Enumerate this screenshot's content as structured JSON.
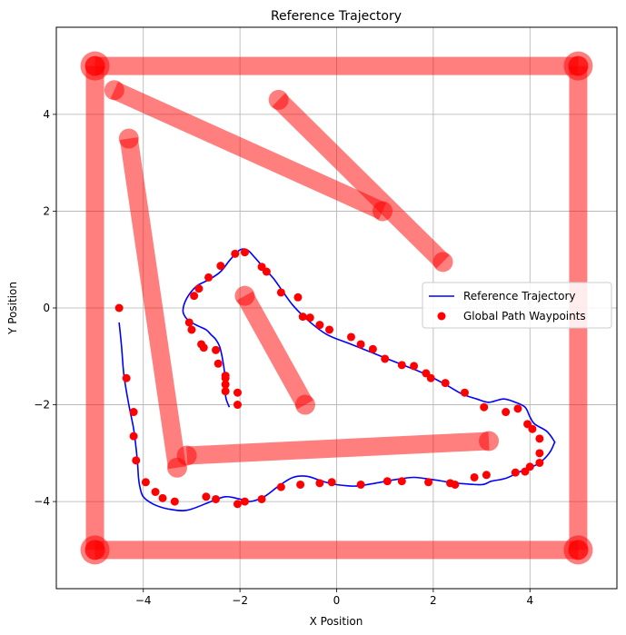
{
  "chart_data": {
    "type": "scatter",
    "title": "Reference Trajectory",
    "xlabel": "X Position",
    "ylabel": "Y Position",
    "xlim": [
      -5.8,
      5.8
    ],
    "ylim": [
      -5.8,
      5.8
    ],
    "xticks": [
      -4,
      -2,
      0,
      2,
      4
    ],
    "yticks": [
      -4,
      -2,
      0,
      2,
      4
    ],
    "tick_labels": {
      "x": [
        "−4",
        "−2",
        "0",
        "2",
        "4"
      ],
      "y": [
        "−4",
        "−2",
        "0",
        "2",
        "4"
      ]
    },
    "grid": true,
    "legend_position": "right",
    "legend": [
      {
        "label": "Reference Trajectory",
        "kind": "line",
        "color": "#0000ff"
      },
      {
        "label": "Global Path Waypoints",
        "kind": "marker",
        "color": "#ff0000"
      }
    ],
    "obstacles": {
      "color": "#ff0000",
      "opacity": 0.5,
      "segments": [
        {
          "from": [
            -5,
            5
          ],
          "to": [
            5,
            5
          ]
        },
        {
          "from": [
            5,
            5
          ],
          "to": [
            5,
            -5
          ]
        },
        {
          "from": [
            5,
            -5
          ],
          "to": [
            -5,
            -5
          ]
        },
        {
          "from": [
            -5,
            -5
          ],
          "to": [
            -5,
            5
          ]
        },
        {
          "from": [
            -4.6,
            4.5
          ],
          "to": [
            0.95,
            2.0
          ]
        },
        {
          "from": [
            -1.2,
            4.3
          ],
          "to": [
            2.2,
            0.95
          ]
        },
        {
          "from": [
            -4.3,
            3.5
          ],
          "to": [
            -3.3,
            -3.3
          ]
        },
        {
          "from": [
            -3.1,
            -3.05
          ],
          "to": [
            3.15,
            -2.75
          ]
        },
        {
          "from": [
            -1.9,
            0.25
          ],
          "to": [
            -0.65,
            -2.0
          ]
        }
      ]
    },
    "reference_trajectory": {
      "name": "Reference Trajectory",
      "color": "#0000ff",
      "x": [
        -4.5,
        -4.45,
        -4.4,
        -4.3,
        -4.2,
        -4.15,
        -4.12,
        -4.1,
        -4.07,
        -4.0,
        -3.8,
        -3.5,
        -3.1,
        -2.6,
        -2.3,
        -2.0,
        -1.8,
        -1.5,
        -1.2,
        -0.9,
        -0.6,
        -0.3,
        0.0,
        0.4,
        0.8,
        1.2,
        1.6,
        2.0,
        2.5,
        3.0,
        3.2,
        3.5,
        3.8,
        4.0,
        4.2,
        4.4,
        4.5,
        4.5,
        4.35,
        4.1,
        4.0,
        3.9,
        3.7,
        3.45,
        3.15,
        2.9,
        2.6,
        2.25,
        1.8,
        1.3,
        0.8,
        0.3,
        -0.2,
        -0.6,
        -0.9,
        -1.1,
        -1.3,
        -1.5,
        -1.7,
        -1.85,
        -2.0,
        -2.2,
        -2.4,
        -2.65,
        -2.9,
        -3.1,
        -3.18,
        -3.12,
        -3.0,
        -2.85,
        -2.7,
        -2.6,
        -2.5,
        -2.42,
        -2.37,
        -2.33,
        -2.3,
        -2.28,
        -2.3,
        -2.28,
        -2.25,
        -2.22
      ],
      "y": [
        -0.3,
        -0.8,
        -1.4,
        -2.0,
        -2.5,
        -2.9,
        -3.2,
        -3.5,
        -3.7,
        -3.9,
        -4.05,
        -4.15,
        -4.18,
        -4.0,
        -3.9,
        -3.95,
        -4.0,
        -3.9,
        -3.68,
        -3.5,
        -3.48,
        -3.58,
        -3.65,
        -3.68,
        -3.62,
        -3.55,
        -3.5,
        -3.55,
        -3.62,
        -3.65,
        -3.58,
        -3.52,
        -3.38,
        -3.3,
        -3.2,
        -3.0,
        -2.8,
        -2.75,
        -2.55,
        -2.4,
        -2.25,
        -2.05,
        -1.95,
        -1.88,
        -1.95,
        -1.88,
        -1.78,
        -1.58,
        -1.35,
        -1.15,
        -0.95,
        -0.75,
        -0.55,
        -0.25,
        0.05,
        0.32,
        0.6,
        0.82,
        1.05,
        1.2,
        1.2,
        1.0,
        0.75,
        0.58,
        0.45,
        0.2,
        -0.05,
        -0.2,
        -0.3,
        -0.38,
        -0.45,
        -0.55,
        -0.65,
        -0.8,
        -1.0,
        -1.25,
        -1.5,
        -1.65,
        -1.8,
        -1.9,
        -1.98,
        -2.05
      ]
    },
    "waypoints": {
      "name": "Global Path Waypoints",
      "color": "#ff0000",
      "x": [
        -4.5,
        -4.35,
        -4.2,
        -4.2,
        -4.15,
        -3.95,
        -3.75,
        -3.6,
        -3.35,
        -2.7,
        -2.5,
        -2.05,
        -1.9,
        -1.55,
        -1.15,
        -0.75,
        -0.35,
        -0.1,
        0.5,
        1.05,
        1.35,
        1.9,
        2.35,
        2.45,
        2.85,
        3.1,
        3.7,
        3.9,
        4.0,
        4.2,
        4.2,
        4.2,
        4.05,
        3.95,
        3.75,
        3.5,
        3.05,
        2.65,
        2.25,
        1.95,
        1.85,
        1.6,
        1.35,
        1.0,
        0.75,
        0.5,
        0.3,
        -0.15,
        -0.35,
        -0.55,
        -0.7,
        -0.8,
        -1.15,
        -1.45,
        -1.55,
        -1.9,
        -2.1,
        -2.4,
        -2.65,
        -2.85,
        -2.95,
        -3.05,
        -3.0,
        -2.8,
        -2.75,
        -2.5,
        -2.45,
        -2.3,
        -2.3,
        -2.3,
        -2.3,
        -2.05,
        -2.05
      ],
      "y": [
        0.0,
        -1.45,
        -2.15,
        -2.65,
        -3.15,
        -3.6,
        -3.8,
        -3.93,
        -4.0,
        -3.9,
        -3.95,
        -4.05,
        -4.0,
        -3.95,
        -3.7,
        -3.65,
        -3.62,
        -3.6,
        -3.65,
        -3.58,
        -3.58,
        -3.6,
        -3.62,
        -3.65,
        -3.5,
        -3.45,
        -3.4,
        -3.38,
        -3.28,
        -3.2,
        -3.0,
        -2.7,
        -2.5,
        -2.4,
        -2.08,
        -2.15,
        -2.05,
        -1.75,
        -1.55,
        -1.45,
        -1.35,
        -1.2,
        -1.18,
        -1.05,
        -0.85,
        -0.75,
        -0.6,
        -0.45,
        -0.35,
        -0.2,
        -0.18,
        0.22,
        0.32,
        0.75,
        0.85,
        1.15,
        1.12,
        0.87,
        0.63,
        0.4,
        0.25,
        -0.3,
        -0.45,
        -0.75,
        -0.82,
        -0.87,
        -1.15,
        -1.4,
        -1.45,
        -1.58,
        -1.72,
        -1.75,
        -2.0
      ]
    }
  }
}
